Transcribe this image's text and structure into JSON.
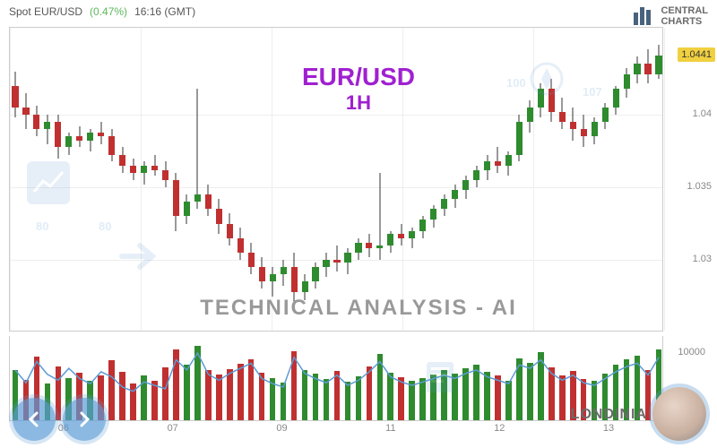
{
  "header": {
    "label": "Spot EUR/USD",
    "pct": "(0.47%)",
    "time": "16:16 (GMT)"
  },
  "brand": {
    "line1": "CENTRAL",
    "line2": "CHARTS"
  },
  "overlay": {
    "pair": "EUR/USD",
    "timeframe": "1H",
    "tech": "TECHNICAL  ANALYSIS - AI",
    "londinia": "LONDINIA"
  },
  "watermarks": {
    "n80a": "80",
    "n80b": "80",
    "n100": "100",
    "n107": "107"
  },
  "chart": {
    "type": "candlestick",
    "ylim": [
      1.025,
      1.046
    ],
    "yticks": [
      1.03,
      1.035,
      1.04
    ],
    "yticklabels": [
      "1.03",
      "1.035",
      "1.04"
    ],
    "last_price": "1.0441",
    "xticks": [
      "06",
      "07",
      "09",
      "11",
      "12",
      "13"
    ],
    "grid_color": "#eeeeee",
    "up_color": "#2e8b2e",
    "down_color": "#c03030",
    "wick_color": "#333333",
    "background": "#ffffff",
    "candles": [
      {
        "o": 1.042,
        "h": 1.043,
        "l": 1.0398,
        "c": 1.0405
      },
      {
        "o": 1.0405,
        "h": 1.0415,
        "l": 1.039,
        "c": 1.04
      },
      {
        "o": 1.04,
        "h": 1.0406,
        "l": 1.0385,
        "c": 1.039
      },
      {
        "o": 1.039,
        "h": 1.04,
        "l": 1.038,
        "c": 1.0395
      },
      {
        "o": 1.0395,
        "h": 1.04,
        "l": 1.037,
        "c": 1.0378
      },
      {
        "o": 1.0378,
        "h": 1.0388,
        "l": 1.0372,
        "c": 1.0385
      },
      {
        "o": 1.0385,
        "h": 1.0392,
        "l": 1.0378,
        "c": 1.0382
      },
      {
        "o": 1.0382,
        "h": 1.039,
        "l": 1.0375,
        "c": 1.0388
      },
      {
        "o": 1.0388,
        "h": 1.0395,
        "l": 1.038,
        "c": 1.0385
      },
      {
        "o": 1.0385,
        "h": 1.039,
        "l": 1.0368,
        "c": 1.0372
      },
      {
        "o": 1.0372,
        "h": 1.0378,
        "l": 1.036,
        "c": 1.0365
      },
      {
        "o": 1.0365,
        "h": 1.037,
        "l": 1.0355,
        "c": 1.036
      },
      {
        "o": 1.036,
        "h": 1.0368,
        "l": 1.0352,
        "c": 1.0365
      },
      {
        "o": 1.0365,
        "h": 1.0372,
        "l": 1.0358,
        "c": 1.0362
      },
      {
        "o": 1.0362,
        "h": 1.0368,
        "l": 1.035,
        "c": 1.0355
      },
      {
        "o": 1.0355,
        "h": 1.036,
        "l": 1.032,
        "c": 1.033
      },
      {
        "o": 1.033,
        "h": 1.0345,
        "l": 1.0325,
        "c": 1.034
      },
      {
        "o": 1.034,
        "h": 1.0418,
        "l": 1.0335,
        "c": 1.0345
      },
      {
        "o": 1.0345,
        "h": 1.0352,
        "l": 1.033,
        "c": 1.0335
      },
      {
        "o": 1.0335,
        "h": 1.0342,
        "l": 1.0318,
        "c": 1.0325
      },
      {
        "o": 1.0325,
        "h": 1.0332,
        "l": 1.031,
        "c": 1.0315
      },
      {
        "o": 1.0315,
        "h": 1.0322,
        "l": 1.03,
        "c": 1.0305
      },
      {
        "o": 1.0305,
        "h": 1.0312,
        "l": 1.029,
        "c": 1.0295
      },
      {
        "o": 1.0295,
        "h": 1.0302,
        "l": 1.028,
        "c": 1.0285
      },
      {
        "o": 1.0285,
        "h": 1.0295,
        "l": 1.0275,
        "c": 1.029
      },
      {
        "o": 1.029,
        "h": 1.03,
        "l": 1.0282,
        "c": 1.0295
      },
      {
        "o": 1.0295,
        "h": 1.0305,
        "l": 1.027,
        "c": 1.0278
      },
      {
        "o": 1.0278,
        "h": 1.029,
        "l": 1.0272,
        "c": 1.0285
      },
      {
        "o": 1.0285,
        "h": 1.0298,
        "l": 1.028,
        "c": 1.0295
      },
      {
        "o": 1.0295,
        "h": 1.0305,
        "l": 1.0288,
        "c": 1.03
      },
      {
        "o": 1.03,
        "h": 1.031,
        "l": 1.0292,
        "c": 1.0298
      },
      {
        "o": 1.0298,
        "h": 1.0308,
        "l": 1.029,
        "c": 1.0305
      },
      {
        "o": 1.0305,
        "h": 1.0315,
        "l": 1.03,
        "c": 1.0312
      },
      {
        "o": 1.0312,
        "h": 1.0318,
        "l": 1.0302,
        "c": 1.0308
      },
      {
        "o": 1.0308,
        "h": 1.036,
        "l": 1.03,
        "c": 1.031
      },
      {
        "o": 1.031,
        "h": 1.032,
        "l": 1.0305,
        "c": 1.0318
      },
      {
        "o": 1.0318,
        "h": 1.0325,
        "l": 1.031,
        "c": 1.0315
      },
      {
        "o": 1.0315,
        "h": 1.0322,
        "l": 1.0308,
        "c": 1.032
      },
      {
        "o": 1.032,
        "h": 1.033,
        "l": 1.0315,
        "c": 1.0328
      },
      {
        "o": 1.0328,
        "h": 1.0338,
        "l": 1.0322,
        "c": 1.0335
      },
      {
        "o": 1.0335,
        "h": 1.0345,
        "l": 1.033,
        "c": 1.0342
      },
      {
        "o": 1.0342,
        "h": 1.0352,
        "l": 1.0336,
        "c": 1.0348
      },
      {
        "o": 1.0348,
        "h": 1.0358,
        "l": 1.0342,
        "c": 1.0355
      },
      {
        "o": 1.0355,
        "h": 1.0365,
        "l": 1.035,
        "c": 1.0362
      },
      {
        "o": 1.0362,
        "h": 1.0372,
        "l": 1.0355,
        "c": 1.0368
      },
      {
        "o": 1.0368,
        "h": 1.0378,
        "l": 1.036,
        "c": 1.0365
      },
      {
        "o": 1.0365,
        "h": 1.0375,
        "l": 1.0358,
        "c": 1.0372
      },
      {
        "o": 1.0372,
        "h": 1.04,
        "l": 1.0368,
        "c": 1.0395
      },
      {
        "o": 1.0395,
        "h": 1.041,
        "l": 1.0388,
        "c": 1.0405
      },
      {
        "o": 1.0405,
        "h": 1.0422,
        "l": 1.0398,
        "c": 1.0418
      },
      {
        "o": 1.0418,
        "h": 1.0425,
        "l": 1.0395,
        "c": 1.0402
      },
      {
        "o": 1.0402,
        "h": 1.0412,
        "l": 1.039,
        "c": 1.0395
      },
      {
        "o": 1.0395,
        "h": 1.0405,
        "l": 1.0382,
        "c": 1.039
      },
      {
        "o": 1.039,
        "h": 1.04,
        "l": 1.0378,
        "c": 1.0385
      },
      {
        "o": 1.0385,
        "h": 1.0398,
        "l": 1.038,
        "c": 1.0395
      },
      {
        "o": 1.0395,
        "h": 1.0408,
        "l": 1.039,
        "c": 1.0405
      },
      {
        "o": 1.0405,
        "h": 1.042,
        "l": 1.04,
        "c": 1.0418
      },
      {
        "o": 1.0418,
        "h": 1.0432,
        "l": 1.0412,
        "c": 1.0428
      },
      {
        "o": 1.0428,
        "h": 1.044,
        "l": 1.0422,
        "c": 1.0435
      },
      {
        "o": 1.0435,
        "h": 1.0445,
        "l": 1.0422,
        "c": 1.0428
      },
      {
        "o": 1.0428,
        "h": 1.0448,
        "l": 1.0425,
        "c": 1.0441
      }
    ]
  },
  "volume": {
    "ylabel": "10000",
    "max": 12000,
    "line_color": "#5b9bd5",
    "bars": [
      {
        "v": 7500,
        "d": "u"
      },
      {
        "v": 6000,
        "d": "d"
      },
      {
        "v": 9500,
        "d": "d"
      },
      {
        "v": 5500,
        "d": "u"
      },
      {
        "v": 8000,
        "d": "d"
      },
      {
        "v": 6200,
        "d": "u"
      },
      {
        "v": 7100,
        "d": "d"
      },
      {
        "v": 5800,
        "d": "u"
      },
      {
        "v": 6600,
        "d": "d"
      },
      {
        "v": 8900,
        "d": "d"
      },
      {
        "v": 7200,
        "d": "d"
      },
      {
        "v": 5400,
        "d": "d"
      },
      {
        "v": 6700,
        "d": "u"
      },
      {
        "v": 5900,
        "d": "d"
      },
      {
        "v": 7800,
        "d": "d"
      },
      {
        "v": 10500,
        "d": "d"
      },
      {
        "v": 8200,
        "d": "u"
      },
      {
        "v": 11000,
        "d": "u"
      },
      {
        "v": 7400,
        "d": "d"
      },
      {
        "v": 6800,
        "d": "d"
      },
      {
        "v": 7600,
        "d": "d"
      },
      {
        "v": 8400,
        "d": "d"
      },
      {
        "v": 9100,
        "d": "d"
      },
      {
        "v": 7000,
        "d": "d"
      },
      {
        "v": 6300,
        "d": "u"
      },
      {
        "v": 5600,
        "d": "u"
      },
      {
        "v": 10200,
        "d": "d"
      },
      {
        "v": 7500,
        "d": "u"
      },
      {
        "v": 6900,
        "d": "u"
      },
      {
        "v": 6100,
        "d": "u"
      },
      {
        "v": 7300,
        "d": "d"
      },
      {
        "v": 5700,
        "d": "u"
      },
      {
        "v": 6500,
        "d": "u"
      },
      {
        "v": 8000,
        "d": "d"
      },
      {
        "v": 9800,
        "d": "u"
      },
      {
        "v": 7100,
        "d": "u"
      },
      {
        "v": 6400,
        "d": "d"
      },
      {
        "v": 5800,
        "d": "u"
      },
      {
        "v": 6200,
        "d": "u"
      },
      {
        "v": 6800,
        "d": "u"
      },
      {
        "v": 7400,
        "d": "u"
      },
      {
        "v": 6900,
        "d": "u"
      },
      {
        "v": 7700,
        "d": "u"
      },
      {
        "v": 8300,
        "d": "u"
      },
      {
        "v": 7200,
        "d": "u"
      },
      {
        "v": 6600,
        "d": "d"
      },
      {
        "v": 5900,
        "d": "u"
      },
      {
        "v": 9200,
        "d": "u"
      },
      {
        "v": 8500,
        "d": "u"
      },
      {
        "v": 10100,
        "d": "u"
      },
      {
        "v": 7800,
        "d": "d"
      },
      {
        "v": 6700,
        "d": "d"
      },
      {
        "v": 7300,
        "d": "d"
      },
      {
        "v": 6100,
        "d": "d"
      },
      {
        "v": 5800,
        "d": "u"
      },
      {
        "v": 6900,
        "d": "u"
      },
      {
        "v": 8200,
        "d": "u"
      },
      {
        "v": 9000,
        "d": "u"
      },
      {
        "v": 9600,
        "d": "u"
      },
      {
        "v": 7500,
        "d": "d"
      },
      {
        "v": 10500,
        "d": "u"
      }
    ],
    "osc": [
      60,
      45,
      70,
      55,
      48,
      62,
      50,
      44,
      58,
      52,
      40,
      35,
      46,
      42,
      38,
      72,
      60,
      80,
      55,
      48,
      56,
      62,
      68,
      50,
      44,
      40,
      75,
      56,
      50,
      45,
      54,
      42,
      48,
      58,
      70,
      52,
      46,
      42,
      46,
      50,
      54,
      50,
      56,
      60,
      52,
      48,
      44,
      66,
      62,
      72,
      56,
      48,
      54,
      45,
      42,
      50,
      58,
      64,
      68,
      54,
      75
    ]
  }
}
